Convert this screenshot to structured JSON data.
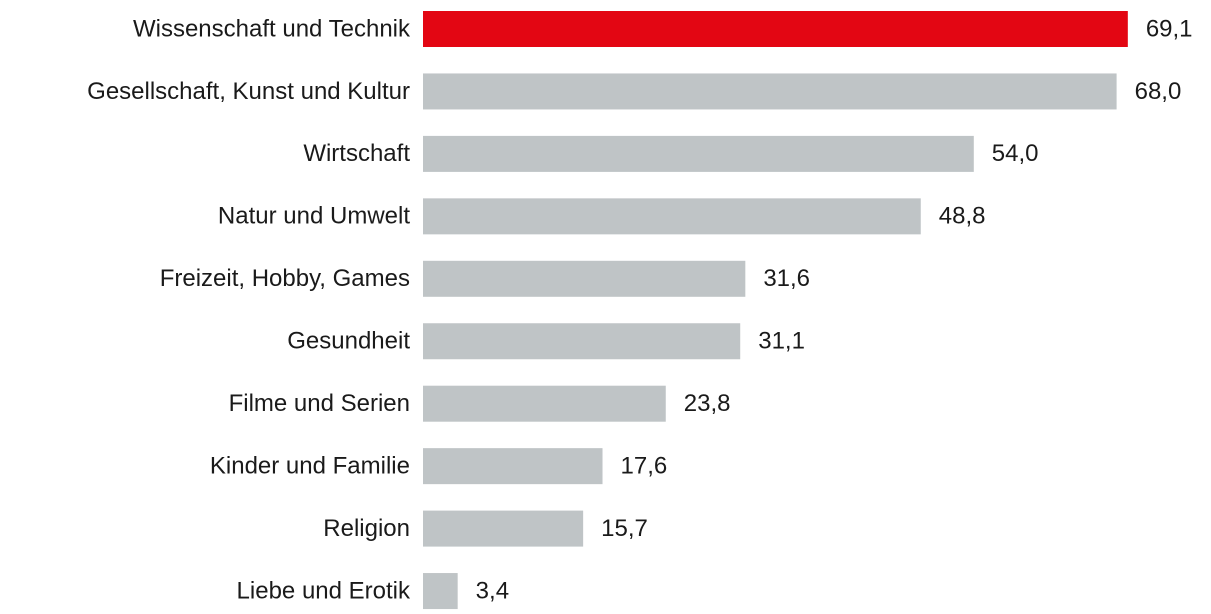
{
  "chart_data": {
    "type": "bar",
    "orientation": "horizontal",
    "categories": [
      "Wissenschaft und Technik",
      "Gesellschaft, Kunst und Kultur",
      "Wirtschaft",
      "Natur und Umwelt",
      "Freizeit, Hobby, Games",
      "Gesundheit",
      "Filme und Serien",
      "Kinder und Familie",
      "Religion",
      "Liebe und Erotik"
    ],
    "values": [
      69.1,
      68.0,
      54.0,
      48.8,
      31.6,
      31.1,
      23.8,
      17.6,
      15.7,
      3.4
    ],
    "value_labels": [
      "69,1",
      "68,0",
      "54,0",
      "48,8",
      "31,6",
      "31,1",
      "23,8",
      "17,6",
      "15,7",
      "3,4"
    ],
    "colors": [
      "#e30613",
      "#bfc4c6",
      "#bfc4c6",
      "#bfc4c6",
      "#bfc4c6",
      "#bfc4c6",
      "#bfc4c6",
      "#bfc4c6",
      "#bfc4c6",
      "#bfc4c6"
    ],
    "xlim": [
      0,
      75
    ]
  }
}
